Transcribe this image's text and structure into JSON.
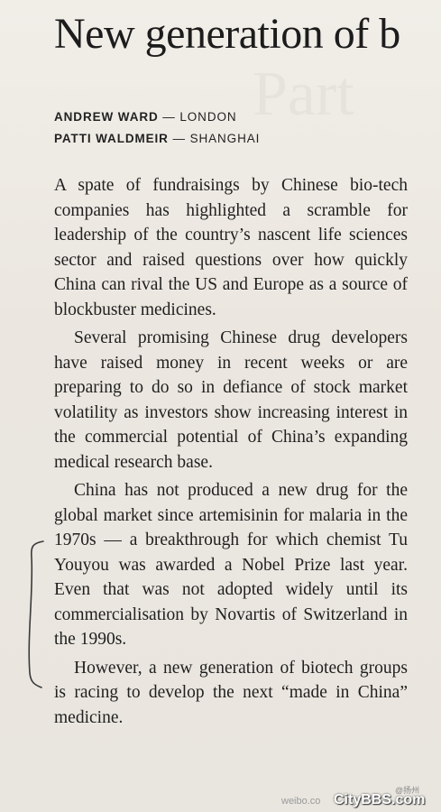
{
  "article": {
    "headline": "New generation of b",
    "bylines": [
      {
        "name": "ANDREW WARD",
        "location": "LONDON"
      },
      {
        "name": "PATTI WALDMEIR",
        "location": "SHANGHAI"
      }
    ],
    "paragraphs": [
      "A spate of fundraisings by Chinese bio-tech companies has highlighted a scramble for leadership of the country’s nascent life sciences sector and raised questions over how quickly China can rival the US and Europe as a source of blockbuster medicines.",
      "Several promising Chinese drug developers have raised money in recent weeks or are preparing to do so in defiance of stock market volatility as investors show increasing interest in the commercial potential of China’s expanding medical research base.",
      "China has not produced a new drug for the global market since artemisinin for malaria in the 1970s — a breakthrough for which chemist Tu Youyou was awarded a Nobel Prize last year. Even that was not adopted widely until its commercialisation by Novartis of Switzerland in the 1990s.",
      "However, a new generation of biotech groups is racing to develop the next “made in China” medicine."
    ]
  },
  "watermark": {
    "weibo": "weibo.co",
    "citybbs": "CityBBS.com",
    "handle": "@扬州"
  }
}
